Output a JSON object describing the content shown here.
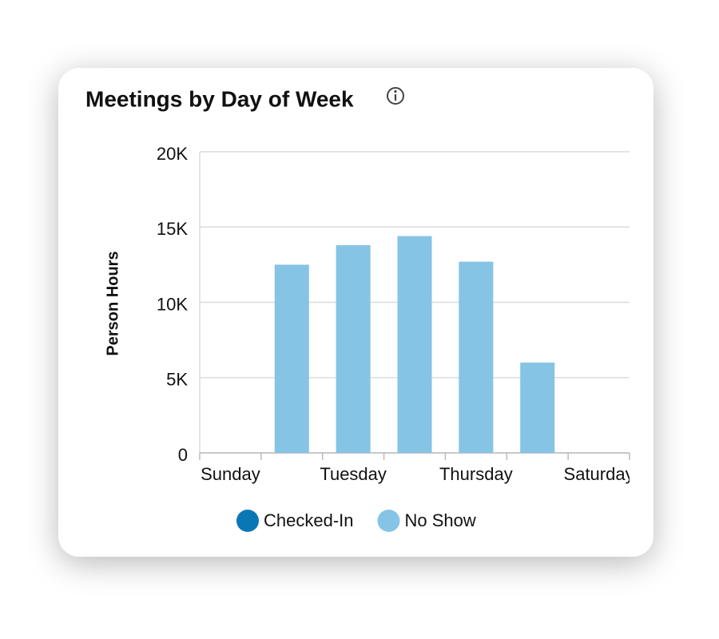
{
  "chart_data": {
    "type": "stacked-bar",
    "title": "Meetings by Day of Week",
    "y_label": "Person Hours",
    "categories": [
      "Sunday",
      null,
      "Tuesday",
      null,
      "Thursday",
      null,
      "Saturday"
    ],
    "series": [
      {
        "name": "Checked-In",
        "color": "#0a77b5",
        "values": [
          0,
          0,
          0,
          0,
          0,
          0,
          0
        ]
      },
      {
        "name": "No Show",
        "color": "#86c4e5",
        "values": [
          0,
          12500,
          13800,
          14400,
          12700,
          6000,
          0
        ]
      }
    ],
    "ylim": [
      0,
      20000
    ],
    "yticks": [
      0,
      {
        "value": 5000,
        "label": "5K"
      },
      {
        "value": 10000,
        "label": "10K"
      },
      {
        "value": 15000,
        "label": "15K"
      },
      {
        "value": 20000,
        "label": "20K"
      }
    ],
    "grid": true
  }
}
